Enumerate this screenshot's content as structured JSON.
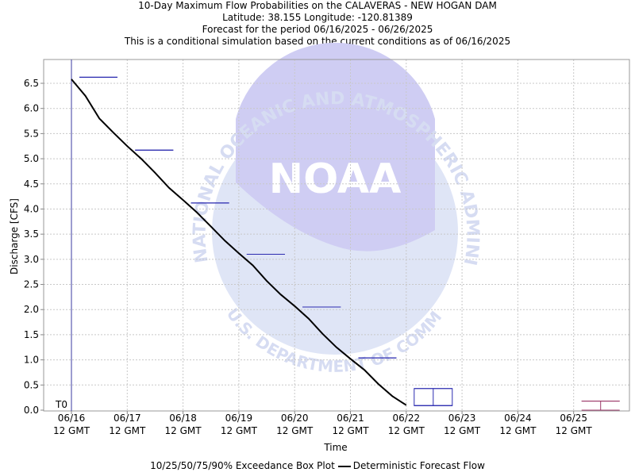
{
  "header": {
    "title": "10-Day Maximum Flow Probabilities on the CALAVERAS - NEW HOGAN DAM",
    "location": "Latitude: 38.155 Longitude: -120.81389",
    "period": "Forecast for the period 06/16/2025 - 06/26/2025",
    "note": "This is a conditional simulation based on the current conditions as of 06/16/2025",
    "src": "(src=D)"
  },
  "watermark": {
    "agency": "NOAA",
    "ring_top": "NATIONAL OCEANIC AND ATMOSPHERIC ADMINISTRATION",
    "ring_bottom": "U.S. DEPARTMENT OF COMMERCE"
  },
  "legend": {
    "boxplot_label": "10/25/50/75/90% Exceedance Box Plot",
    "line_label": "Deterministic Forecast Flow"
  },
  "colors": {
    "boxplot": "#2b2bb0",
    "boxplot_late": "#9c3a6a",
    "forecast_line": "#000000",
    "t0_line": "#3a3aa0",
    "grid": "#c8c8c8",
    "watermark": "#d6dcf2"
  },
  "chart_data": {
    "type": "line",
    "title": "10-Day Maximum Flow Probabilities on the CALAVERAS - NEW HOGAN DAM",
    "xlabel": "Time",
    "ylabel": "Discharge [CFS]",
    "ylim": [
      0,
      6.6
    ],
    "yticks": [
      "0.0",
      "0.5",
      "1.0",
      "1.5",
      "2.0",
      "2.5",
      "3.0",
      "3.5",
      "4.0",
      "4.5",
      "5.0",
      "5.5",
      "6.0",
      "6.5"
    ],
    "xticks": [
      {
        "date": "06/16",
        "time": "12 GMT"
      },
      {
        "date": "06/17",
        "time": "12 GMT"
      },
      {
        "date": "06/18",
        "time": "12 GMT"
      },
      {
        "date": "06/19",
        "time": "12 GMT"
      },
      {
        "date": "06/20",
        "time": "12 GMT"
      },
      {
        "date": "06/21",
        "time": "12 GMT"
      },
      {
        "date": "06/22",
        "time": "12 GMT"
      },
      {
        "date": "06/23",
        "time": "12 GMT"
      },
      {
        "date": "06/24",
        "time": "12 GMT"
      },
      {
        "date": "06/25",
        "time": "12 GMT"
      }
    ],
    "xlim": [
      "06/16 12 GMT",
      "06/26 12 GMT"
    ],
    "t0_label": "T0",
    "t0": "06/16 12 GMT",
    "grid": true,
    "legend_position": "bottom",
    "series": [
      {
        "name": "Deterministic Forecast Flow",
        "points": [
          {
            "t": "06/16 12 GMT",
            "y": 6.58
          },
          {
            "t": "06/16 18 GMT",
            "y": 6.25
          },
          {
            "t": "06/17 00 GMT",
            "y": 5.8
          },
          {
            "t": "06/17 06 GMT",
            "y": 5.52
          },
          {
            "t": "06/17 12 GMT",
            "y": 5.25
          },
          {
            "t": "06/17 18 GMT",
            "y": 5.0
          },
          {
            "t": "06/18 00 GMT",
            "y": 4.72
          },
          {
            "t": "06/18 06 GMT",
            "y": 4.42
          },
          {
            "t": "06/18 12 GMT",
            "y": 4.18
          },
          {
            "t": "06/18 18 GMT",
            "y": 3.93
          },
          {
            "t": "06/19 00 GMT",
            "y": 3.65
          },
          {
            "t": "06/19 06 GMT",
            "y": 3.37
          },
          {
            "t": "06/19 12 GMT",
            "y": 3.12
          },
          {
            "t": "06/19 18 GMT",
            "y": 2.88
          },
          {
            "t": "06/20 00 GMT",
            "y": 2.57
          },
          {
            "t": "06/20 06 GMT",
            "y": 2.3
          },
          {
            "t": "06/20 12 GMT",
            "y": 2.07
          },
          {
            "t": "06/20 18 GMT",
            "y": 1.82
          },
          {
            "t": "06/21 00 GMT",
            "y": 1.52
          },
          {
            "t": "06/21 06 GMT",
            "y": 1.25
          },
          {
            "t": "06/21 12 GMT",
            "y": 1.02
          },
          {
            "t": "06/21 18 GMT",
            "y": 0.8
          },
          {
            "t": "06/22 00 GMT",
            "y": 0.52
          },
          {
            "t": "06/22 06 GMT",
            "y": 0.28
          },
          {
            "t": "06/22 12 GMT",
            "y": 0.1
          }
        ]
      }
    ],
    "boxplots": [
      {
        "period": "06/16 - 06/17",
        "p10": 6.62,
        "p25": 6.62,
        "p50": 6.62,
        "p75": 6.62,
        "p90": 6.62
      },
      {
        "period": "06/17 - 06/18",
        "p10": 5.17,
        "p25": 5.17,
        "p50": 5.17,
        "p75": 5.17,
        "p90": 5.17
      },
      {
        "period": "06/18 - 06/19",
        "p10": 4.12,
        "p25": 4.12,
        "p50": 4.12,
        "p75": 4.12,
        "p90": 4.12
      },
      {
        "period": "06/19 - 06/20",
        "p10": 3.1,
        "p25": 3.1,
        "p50": 3.1,
        "p75": 3.1,
        "p90": 3.1
      },
      {
        "period": "06/20 - 06/21",
        "p10": 2.05,
        "p25": 2.05,
        "p50": 2.05,
        "p75": 2.05,
        "p90": 2.05
      },
      {
        "period": "06/21 - 06/22",
        "p10": 1.04,
        "p25": 1.04,
        "p50": 1.04,
        "p75": 1.04,
        "p90": 1.04
      },
      {
        "period": "06/22 - 06/23",
        "p10": 0.09,
        "p25": 0.09,
        "p50": 0.09,
        "p75": 0.43,
        "p90": 0.43
      },
      {
        "period": "06/25 - 06/26",
        "p10": 0.0,
        "p25": 0.18,
        "p50": 0.18,
        "p75": 0.18,
        "p90": 0.18
      }
    ]
  }
}
